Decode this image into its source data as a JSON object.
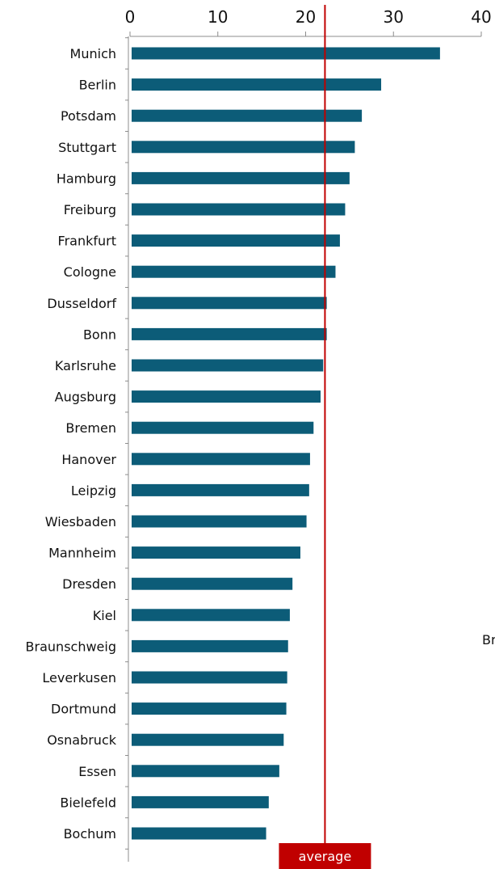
{
  "chart_data": {
    "type": "bar",
    "orientation": "horizontal",
    "categories": [
      "Munich",
      "Berlin",
      "Potsdam",
      "Stuttgart",
      "Hamburg",
      "Freiburg",
      "Frankfurt",
      "Cologne",
      "Dusseldorf",
      "Bonn",
      "Karlsruhe",
      "Augsburg",
      "Bremen",
      "Hanover",
      "Leipzig",
      "Wiesbaden",
      "Mannheim",
      "Dresden",
      "Kiel",
      "Braunschweig",
      "Leverkusen",
      "Dortmund",
      "Osnabruck",
      "Essen",
      "Bielefeld",
      "Bochum"
    ],
    "values": [
      35.3,
      28.6,
      26.4,
      25.6,
      25.0,
      24.5,
      23.9,
      23.4,
      22.4,
      22.4,
      22.0,
      21.7,
      20.9,
      20.5,
      20.4,
      20.1,
      19.4,
      18.5,
      18.2,
      18.0,
      17.9,
      17.8,
      17.5,
      17.0,
      15.8,
      15.5
    ],
    "x_ticks": [
      "0",
      "10",
      "20",
      "30",
      "40"
    ],
    "xlim": [
      0,
      40
    ],
    "average": 22.2,
    "average_label": "average",
    "grid": false,
    "colors": {
      "bar": "#0c5c78",
      "average": "#c00000",
      "axis": "#8c8c8c"
    },
    "clipped_label": "Br"
  }
}
